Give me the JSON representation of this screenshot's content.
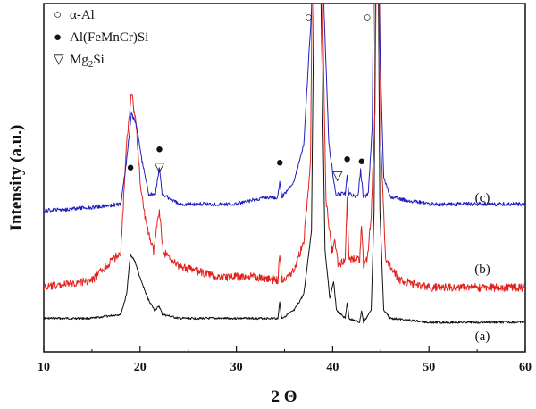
{
  "chart_data": {
    "type": "line",
    "xlabel": "2 Θ",
    "ylabel": "Intensity (a.u.)",
    "xlim": [
      10,
      60
    ],
    "x_ticks": [
      "10",
      "20",
      "30",
      "40",
      "50",
      "60"
    ],
    "grid": false,
    "legend": {
      "placement": "top-left",
      "entries": [
        {
          "marker": "○",
          "label": "α-Al"
        },
        {
          "marker": "●",
          "label": "Al(FeMnCr)Si"
        },
        {
          "marker": "▽",
          "label": "Mg",
          "sub": "2",
          "suffix": "Si"
        }
      ]
    },
    "series": [
      {
        "name": "(a)",
        "color": "#111111",
        "points": [
          [
            10,
            0.03
          ],
          [
            15,
            0.03
          ],
          [
            18,
            0.04
          ],
          [
            18.6,
            0.09
          ],
          [
            19.0,
            0.19
          ],
          [
            19.5,
            0.17
          ],
          [
            20.0,
            0.13
          ],
          [
            20.8,
            0.08
          ],
          [
            21.5,
            0.05
          ],
          [
            22,
            0.06
          ],
          [
            22.3,
            0.04
          ],
          [
            24,
            0.03
          ],
          [
            30,
            0.03
          ],
          [
            34.3,
            0.03
          ],
          [
            34.5,
            0.07
          ],
          [
            34.7,
            0.03
          ],
          [
            36,
            0.05
          ],
          [
            37,
            0.09
          ],
          [
            37.8,
            0.25
          ],
          [
            38.2,
            1.2
          ],
          [
            38.5,
            1.4
          ],
          [
            38.8,
            0.8
          ],
          [
            39.2,
            0.2
          ],
          [
            39.7,
            0.08
          ],
          [
            40.1,
            0.12
          ],
          [
            40.4,
            0.05
          ],
          [
            41.3,
            0.03
          ],
          [
            41.5,
            0.07
          ],
          [
            41.7,
            0.03
          ],
          [
            42.8,
            0.02
          ],
          [
            43.0,
            0.05
          ],
          [
            43.2,
            0.02
          ],
          [
            44.0,
            0.05
          ],
          [
            44.3,
            0.3
          ],
          [
            44.6,
            1.4
          ],
          [
            44.9,
            0.3
          ],
          [
            45.3,
            0.05
          ],
          [
            46,
            0.03
          ],
          [
            50,
            0.02
          ],
          [
            60,
            0.02
          ]
        ]
      },
      {
        "name": "(b)",
        "color": "#e3211c",
        "points": [
          [
            10,
            0.0
          ],
          [
            15,
            0.02
          ],
          [
            18,
            0.1
          ],
          [
            18.6,
            0.4
          ],
          [
            19.1,
            0.55
          ],
          [
            19.6,
            0.45
          ],
          [
            20.0,
            0.3
          ],
          [
            20.6,
            0.18
          ],
          [
            21.4,
            0.1
          ],
          [
            22,
            0.22
          ],
          [
            22.4,
            0.1
          ],
          [
            24,
            0.06
          ],
          [
            28,
            0.03
          ],
          [
            32,
            0.03
          ],
          [
            34.3,
            0.02
          ],
          [
            34.5,
            0.1
          ],
          [
            34.7,
            0.02
          ],
          [
            36,
            0.05
          ],
          [
            37,
            0.13
          ],
          [
            37.7,
            0.35
          ],
          [
            38.0,
            1.3
          ],
          [
            38.4,
            1.4
          ],
          [
            38.8,
            1.0
          ],
          [
            39.3,
            0.25
          ],
          [
            39.9,
            0.1
          ],
          [
            40.2,
            0.13
          ],
          [
            40.6,
            0.06
          ],
          [
            41.3,
            0.08
          ],
          [
            41.5,
            0.25
          ],
          [
            41.7,
            0.08
          ],
          [
            42.8,
            0.08
          ],
          [
            43.0,
            0.18
          ],
          [
            43.2,
            0.06
          ],
          [
            43.6,
            0.08
          ],
          [
            44.0,
            0.2
          ],
          [
            44.4,
            0.5
          ],
          [
            44.7,
            1.4
          ],
          [
            45.0,
            0.4
          ],
          [
            45.5,
            0.08
          ],
          [
            47,
            0.02
          ],
          [
            50,
            0.0
          ],
          [
            60,
            0.0
          ]
        ]
      },
      {
        "name": "(c)",
        "color": "#1f1fbf",
        "points": [
          [
            10,
            0.0
          ],
          [
            15,
            0.01
          ],
          [
            18,
            0.02
          ],
          [
            18.6,
            0.15
          ],
          [
            19.1,
            0.29
          ],
          [
            19.6,
            0.26
          ],
          [
            20.2,
            0.15
          ],
          [
            20.9,
            0.05
          ],
          [
            21.6,
            0.05
          ],
          [
            22,
            0.13
          ],
          [
            22.3,
            0.05
          ],
          [
            24,
            0.02
          ],
          [
            30,
            0.02
          ],
          [
            33,
            0.04
          ],
          [
            34.3,
            0.04
          ],
          [
            34.5,
            0.09
          ],
          [
            34.7,
            0.04
          ],
          [
            36,
            0.09
          ],
          [
            37.0,
            0.2
          ],
          [
            37.8,
            0.6
          ],
          [
            38.3,
            1.4
          ],
          [
            38.7,
            1.4
          ],
          [
            39.1,
            0.6
          ],
          [
            39.6,
            0.2
          ],
          [
            40.3,
            0.05
          ],
          [
            41.3,
            0.05
          ],
          [
            41.5,
            0.1
          ],
          [
            41.7,
            0.05
          ],
          [
            42.6,
            0.04
          ],
          [
            42.9,
            0.12
          ],
          [
            43.2,
            0.04
          ],
          [
            43.7,
            0.05
          ],
          [
            44.1,
            0.25
          ],
          [
            44.5,
            1.4
          ],
          [
            44.9,
            0.5
          ],
          [
            45.3,
            0.1
          ],
          [
            46,
            0.04
          ],
          [
            50,
            0.02
          ],
          [
            60,
            0.02
          ]
        ]
      }
    ],
    "annotations": [
      {
        "marker": "●",
        "x": 19.0,
        "series": "(c)"
      },
      {
        "marker": "▽",
        "x": 22.0,
        "series": "(c)"
      },
      {
        "marker": "●",
        "x": 22.0,
        "series": "(c)"
      },
      {
        "marker": "●",
        "x": 34.5,
        "series": "(c)"
      },
      {
        "marker": "○",
        "x": 37.5,
        "series": "(c)"
      },
      {
        "marker": "▽",
        "x": 40.5,
        "series": "(c)"
      },
      {
        "marker": "●",
        "x": 41.5,
        "series": "(c)"
      },
      {
        "marker": "●",
        "x": 43.0,
        "series": "(c)"
      },
      {
        "marker": "○",
        "x": 43.6,
        "series": "(c)"
      }
    ]
  }
}
